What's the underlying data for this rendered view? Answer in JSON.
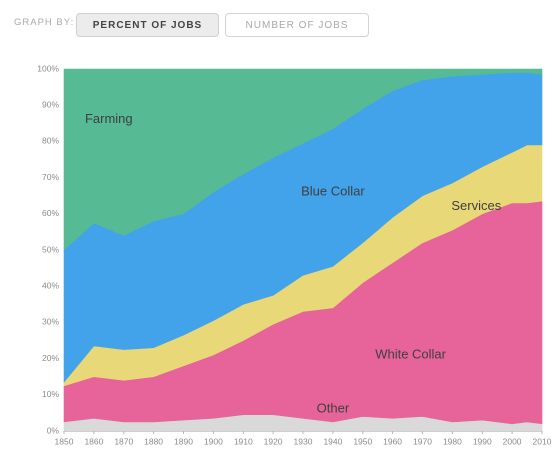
{
  "toolbar": {
    "graph_by_label": "GRAPH BY:",
    "percent_label": "PERCENT OF JOBS",
    "number_label": "NUMBER OF JOBS",
    "selected": "percent"
  },
  "colors": {
    "other": "#d9d9d9",
    "white_collar": "#e66499",
    "services": "#e8d877",
    "blue_collar": "#42a3ea",
    "farming": "#56ba95",
    "toolbar_active_bg": "#ececec"
  },
  "chart_data": {
    "type": "area",
    "stacked": true,
    "x": [
      1850,
      1860,
      1870,
      1880,
      1890,
      1900,
      1910,
      1920,
      1930,
      1940,
      1950,
      1960,
      1970,
      1980,
      1990,
      2000,
      2005,
      2010
    ],
    "xticks": [
      1850,
      1860,
      1870,
      1880,
      1890,
      1900,
      1910,
      1920,
      1930,
      1940,
      1950,
      1960,
      1970,
      1980,
      1990,
      2000,
      2010
    ],
    "xtick_labels": [
      "1850",
      "1860",
      "1870",
      "1880",
      "1890",
      "1900",
      "1910",
      "1920",
      "1930",
      "1940",
      "1950",
      "1960",
      "1970",
      "1980",
      "1990",
      "2000",
      "2010"
    ],
    "ylim": [
      0,
      100
    ],
    "yticks": [
      0,
      10,
      20,
      30,
      40,
      50,
      60,
      70,
      80,
      90,
      100
    ],
    "ytick_labels": [
      "0%",
      "10%",
      "20%",
      "30%",
      "40%",
      "50%",
      "60%",
      "70%",
      "80%",
      "90%",
      "100%"
    ],
    "series": [
      {
        "name": "Other",
        "color": "#d9d9d9",
        "values": [
          2.5,
          3.5,
          2.5,
          2.5,
          3,
          3.5,
          4.5,
          4.5,
          3.5,
          2.5,
          4.0,
          3.5,
          4.0,
          2.5,
          3.0,
          2.0,
          2.5,
          2.0
        ]
      },
      {
        "name": "White Collar",
        "color": "#e66499",
        "values": [
          10.0,
          11.5,
          11.5,
          12.5,
          15,
          17.5,
          20.5,
          25.0,
          29.5,
          31.5,
          37.0,
          43.0,
          48.0,
          53.0,
          57.0,
          61.0,
          60.5,
          61.5
        ]
      },
      {
        "name": "Services",
        "color": "#e8d877",
        "values": [
          1.0,
          8.5,
          8.5,
          8.0,
          8.5,
          9.5,
          10.0,
          8.0,
          10.0,
          11.5,
          11.0,
          12.5,
          13.0,
          13.0,
          13.0,
          14.0,
          16.0,
          15.5
        ]
      },
      {
        "name": "Blue Collar",
        "color": "#42a3ea",
        "values": [
          36.5,
          34.0,
          31.5,
          35.0,
          33.5,
          35.5,
          36.0,
          38.0,
          36.5,
          38.0,
          37.0,
          35.0,
          32.0,
          29.5,
          25.5,
          22.0,
          20.0,
          19.5
        ]
      },
      {
        "name": "Farming",
        "color": "#56ba95",
        "values": [
          50.0,
          42.5,
          46.0,
          42.0,
          40.0,
          34.0,
          29.0,
          24.5,
          20.5,
          16.5,
          11.0,
          6.0,
          3.0,
          2.0,
          1.5,
          1.0,
          1.0,
          1.5
        ]
      }
    ],
    "annotations": [
      {
        "text": "Farming",
        "series": "Farming",
        "x": 1865,
        "y": 86
      },
      {
        "text": "Blue Collar",
        "series": "Blue Collar",
        "x": 1940,
        "y": 66
      },
      {
        "text": "Services",
        "series": "Services",
        "x": 1988,
        "y": 62
      },
      {
        "text": "White Collar",
        "series": "White Collar",
        "x": 1966,
        "y": 21
      },
      {
        "text": "Other",
        "series": "Other",
        "x": 1940,
        "y": 6
      }
    ],
    "grid": false,
    "legend": "none"
  }
}
